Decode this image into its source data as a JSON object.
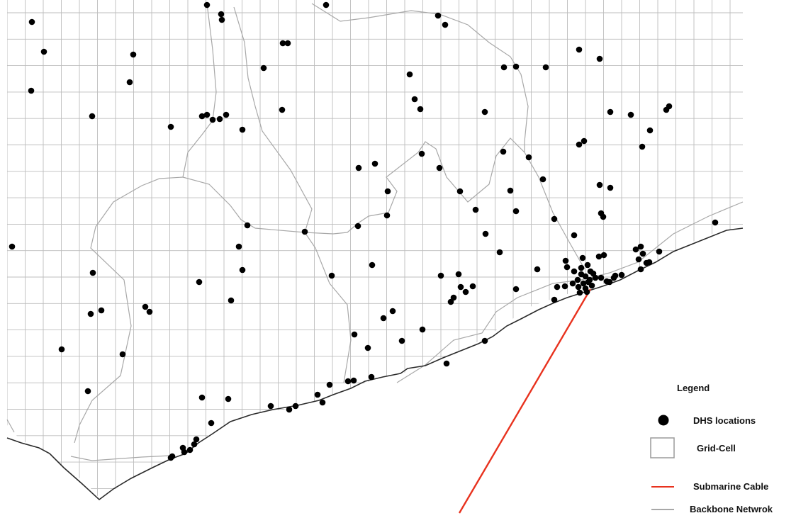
{
  "legend": {
    "title": "Legend",
    "items": [
      {
        "key": "dhs",
        "label": "DHS locations",
        "icon": "filled-circle-icon",
        "color": "#000000"
      },
      {
        "key": "grid",
        "label": "Grid-Cell",
        "icon": "square-outline-icon",
        "color": "#9a9a9a"
      },
      {
        "key": "cable",
        "label": "Submarine Cable",
        "icon": "line-icon",
        "color": "#e8321e"
      },
      {
        "key": "backbone",
        "label": "Backbone Netwrok",
        "icon": "line-icon",
        "color": "#aaaaaa"
      }
    ]
  },
  "colors": {
    "grid": "#bdbdbd",
    "backbone": "#a8a8a8",
    "coast": "#2a2a2a",
    "cable": "#e8321e",
    "dhs": "#000000"
  }
}
